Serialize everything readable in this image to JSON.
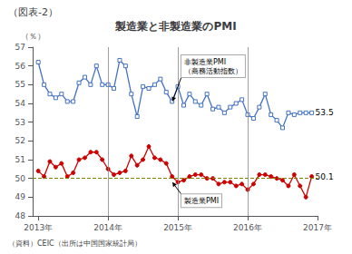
{
  "chart_data": {
    "type": "line",
    "title": "製造業と非製造業のPMI",
    "top_label": "（図表-2）",
    "ylabel": "（％）",
    "source": "（資料）CEIC（出所は中国国家統計局）",
    "x": [
      2013.0,
      2013.08333,
      2013.16666,
      2013.24999,
      2013.33332,
      2013.41665,
      2013.49998,
      2013.58331,
      2013.66664,
      2013.74997,
      2013.8333,
      2013.91663,
      2013.99996,
      2014.08329,
      2014.16662,
      2014.24995,
      2014.33328,
      2014.41661,
      2014.49994,
      2014.58327,
      2014.6666,
      2014.74993,
      2014.83326,
      2014.91659,
      2014.99992,
      2015.08325,
      2015.16658,
      2015.24991,
      2015.33324,
      2015.41657,
      2015.4999,
      2015.58323,
      2015.66656,
      2015.74989,
      2015.83322,
      2015.91655,
      2015.99988,
      2016.08321,
      2016.16654,
      2016.24987,
      2016.3332,
      2016.41653,
      2016.49986,
      2016.58319,
      2016.66652,
      2016.74985,
      2016.83318,
      2016.91651
    ],
    "xlim": [
      2012.92,
      2017.0
    ],
    "xticks": [
      {
        "value": 2013.0,
        "label": "2013年"
      },
      {
        "value": 2014.0,
        "label": "2014年"
      },
      {
        "value": 2015.0,
        "label": "2015年"
      },
      {
        "value": 2016.0,
        "label": "2016年"
      },
      {
        "value": 2017.0,
        "label": "2017年"
      }
    ],
    "ylim": [
      48,
      57
    ],
    "yticks": [
      48,
      49,
      50,
      51,
      52,
      53,
      54,
      55,
      56,
      57
    ],
    "grid": false,
    "series": [
      {
        "color": "#4472c4",
        "marker": "square",
        "end_label": "53.5",
        "values": [
          56.2,
          55.0,
          54.5,
          54.3,
          54.5,
          54.1,
          54.1,
          55.1,
          55.4,
          55.0,
          56.0,
          55.0,
          55.0,
          54.8,
          56.3,
          56.0,
          54.5,
          53.3,
          54.9,
          54.8,
          55.0,
          55.3,
          54.6,
          54.1,
          54.9,
          53.9,
          54.5,
          54.1,
          53.9,
          54.5,
          53.7,
          53.8,
          53.5,
          53.8,
          54.0,
          54.2,
          53.4,
          53.2,
          53.8,
          54.5,
          53.4,
          53.1,
          52.7,
          53.5,
          53.4,
          53.5,
          53.5,
          53.5
        ]
      },
      {
        "color": "#cc0000",
        "marker": "circle",
        "end_label": "50.1",
        "values": [
          50.4,
          50.1,
          50.9,
          50.6,
          50.8,
          50.1,
          50.3,
          51.0,
          51.1,
          51.4,
          51.4,
          51.0,
          50.5,
          50.2,
          50.3,
          50.4,
          51.2,
          50.7,
          51.0,
          51.7,
          51.1,
          51.0,
          50.8,
          50.1,
          49.8,
          49.9,
          50.1,
          50.2,
          50.2,
          50.0,
          50.0,
          49.7,
          49.8,
          49.8,
          49.6,
          49.7,
          49.4,
          49.7,
          50.2,
          50.2,
          50.1,
          50.0,
          49.9,
          49.6,
          50.2,
          49.6,
          49.0,
          50.1
        ]
      }
    ],
    "ref_line": {
      "value": 50.0,
      "color": "#808000",
      "line_style": "dashed"
    },
    "vertical_lines": {
      "values": [
        2014.0,
        2015.0,
        2016.0
      ],
      "color": "#888888"
    },
    "annotations": [
      {
        "text": "非製造業PMI\n（商務活動指数）",
        "x": 2014.92,
        "y": 54.1,
        "xytext": [
          2015.05,
          55.4
        ]
      },
      {
        "text": "製造業PMI",
        "x": 2014.92,
        "y": 49.8,
        "xytext": [
          2015.05,
          49.15
        ]
      }
    ]
  }
}
